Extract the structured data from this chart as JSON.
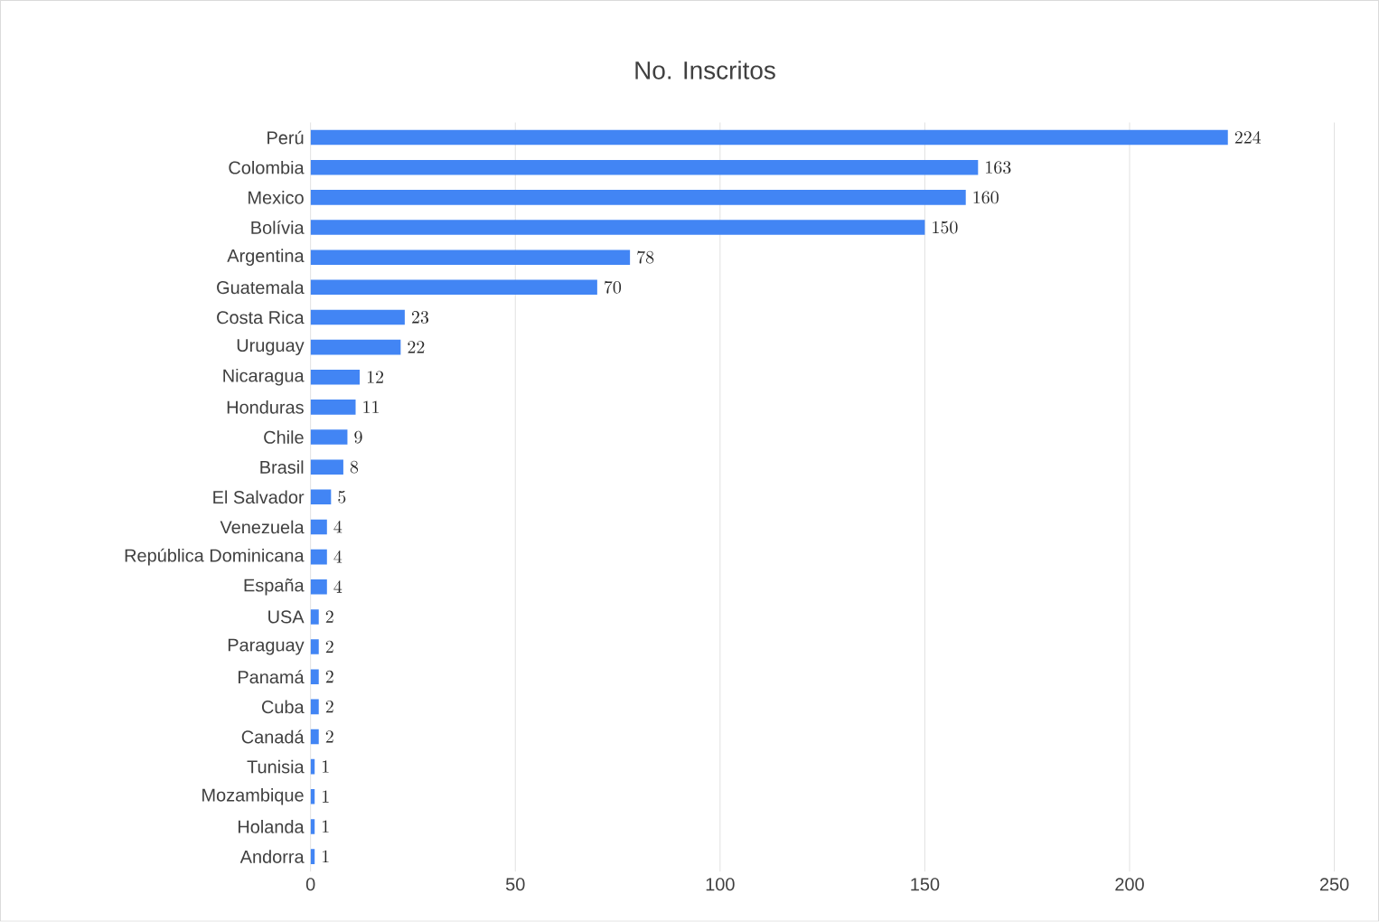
{
  "chart_data": {
    "type": "bar",
    "orientation": "horizontal",
    "title": "No. Inscritos",
    "categories": [
      "Perú",
      "Colombia",
      "Mexico",
      "Bolívia",
      "Argentina",
      "Guatemala",
      "Costa Rica",
      "Uruguay",
      "Nicaragua",
      "Honduras",
      "Chile",
      "Brasil",
      "El Salvador",
      "Venezuela",
      "República Dominicana",
      "España",
      "USA",
      "Paraguay",
      "Panamá",
      "Cuba",
      "Canadá",
      "Tunisia",
      "Mozambique",
      "Holanda",
      "Andorra"
    ],
    "values": [
      224,
      163,
      160,
      150,
      78,
      70,
      23,
      22,
      12,
      11,
      9,
      8,
      5,
      4,
      4,
      4,
      2,
      2,
      2,
      2,
      2,
      1,
      1,
      1,
      1
    ],
    "color": "#4285f4",
    "xlim": [
      0,
      250
    ],
    "xticks": [
      0,
      50,
      100,
      150,
      200,
      250
    ],
    "grid": "x",
    "data_labels": true
  }
}
